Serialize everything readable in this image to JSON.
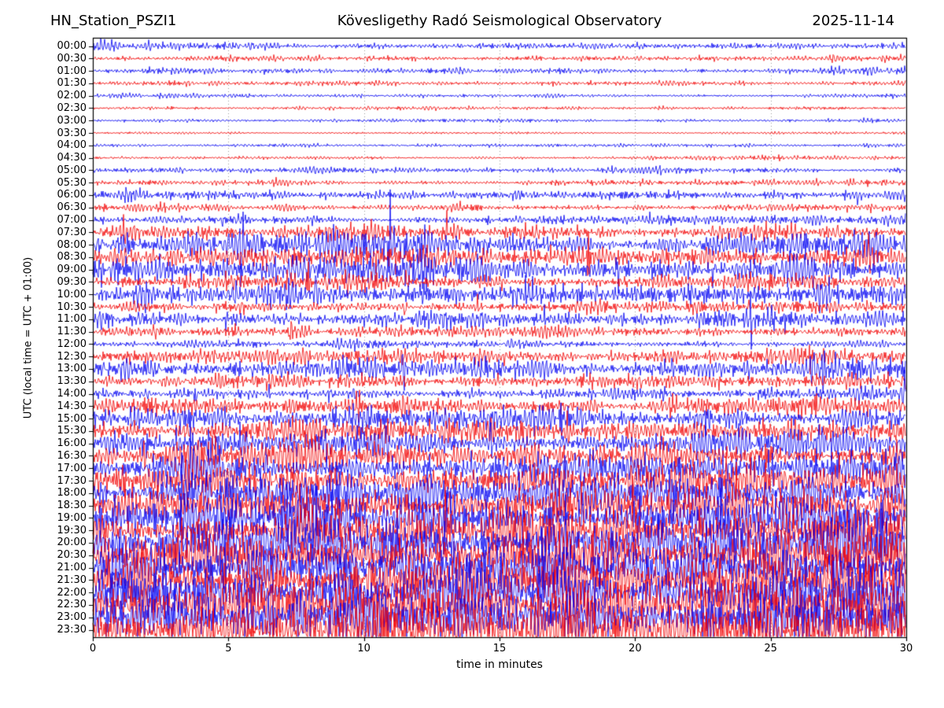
{
  "header": {
    "station": "HN_Station_PSZI1",
    "observatory": "Kövesligethy Radó Seismological Observatory",
    "date": "2025-11-14"
  },
  "chart_data": {
    "type": "line",
    "subtype": "helicorder_day_plot",
    "title": "HN_Station_PSZI1",
    "subtitle": "Kövesligethy Radó Seismological Observatory",
    "date_label": "2025-11-14",
    "xlabel": "time in minutes",
    "ylabel": "UTC (local time = UTC + 01:00)",
    "xlim": [
      0,
      30
    ],
    "xticks": [
      0,
      5,
      10,
      15,
      20,
      25,
      30
    ],
    "grid": {
      "vertical_dotted_minutes": [
        5,
        10,
        15,
        20,
        25
      ],
      "color": "#9a9a9a",
      "style": "dotted"
    },
    "legend": "none",
    "trace_colors": {
      "blue": "#0000f2",
      "red": "#f20000"
    },
    "minutes_per_row": 30,
    "rows": [
      {
        "label": "00:00",
        "color": "blue",
        "amp": [
          6,
          5,
          4,
          5,
          4,
          4,
          6
        ]
      },
      {
        "label": "00:30",
        "color": "red",
        "amp": [
          5,
          4,
          4,
          3,
          3,
          4,
          4
        ]
      },
      {
        "label": "01:00",
        "color": "blue",
        "amp": [
          3,
          4,
          4,
          3,
          3,
          3,
          5
        ]
      },
      {
        "label": "01:30",
        "color": "red",
        "amp": [
          4,
          3,
          3,
          3,
          3,
          3,
          4
        ]
      },
      {
        "label": "02:00",
        "color": "blue",
        "amp": [
          3,
          3,
          2,
          2,
          2,
          2,
          3
        ]
      },
      {
        "label": "02:30",
        "color": "red",
        "amp": [
          3,
          2,
          2,
          2,
          2,
          2,
          2
        ]
      },
      {
        "label": "03:00",
        "color": "blue",
        "amp": [
          2,
          2,
          2,
          2,
          2,
          2,
          2
        ]
      },
      {
        "label": "03:30",
        "color": "red",
        "amp": [
          1.5,
          1.5,
          1.5,
          1.5,
          1.5,
          1.5,
          1.5
        ]
      },
      {
        "label": "04:00",
        "color": "blue",
        "amp": [
          2,
          2,
          2,
          3,
          2,
          2,
          2
        ]
      },
      {
        "label": "04:30",
        "color": "red",
        "amp": [
          3,
          2,
          2,
          2,
          2,
          3,
          3
        ]
      },
      {
        "label": "05:00",
        "color": "blue",
        "amp": [
          5,
          4,
          3,
          3,
          4,
          4,
          4
        ]
      },
      {
        "label": "05:30",
        "color": "red",
        "amp": [
          4,
          4,
          3,
          3,
          4,
          4,
          4
        ]
      },
      {
        "label": "06:00",
        "color": "blue",
        "amp": [
          6,
          7,
          6,
          5,
          6,
          6,
          7
        ]
      },
      {
        "label": "06:30",
        "color": "red",
        "amp": [
          5,
          5,
          4,
          4,
          5,
          5,
          6
        ]
      },
      {
        "label": "07:00",
        "color": "blue",
        "amp": [
          6,
          6,
          5,
          6,
          5,
          6,
          8
        ]
      },
      {
        "label": "07:30",
        "color": "red",
        "amp": [
          8,
          10,
          10,
          8,
          8,
          9,
          10
        ]
      },
      {
        "label": "08:00",
        "color": "blue",
        "amp": [
          14,
          20,
          22,
          16,
          12,
          16,
          18
        ]
      },
      {
        "label": "08:30",
        "color": "red",
        "amp": [
          10,
          16,
          18,
          12,
          10,
          12,
          12
        ]
      },
      {
        "label": "09:00",
        "color": "blue",
        "amp": [
          16,
          20,
          22,
          14,
          12,
          16,
          14
        ]
      },
      {
        "label": "09:30",
        "color": "red",
        "amp": [
          8,
          10,
          12,
          8,
          8,
          10,
          10
        ]
      },
      {
        "label": "10:00",
        "color": "blue",
        "amp": [
          12,
          14,
          16,
          12,
          10,
          14,
          14
        ]
      },
      {
        "label": "10:30",
        "color": "red",
        "amp": [
          6,
          8,
          8,
          6,
          7,
          8,
          8
        ]
      },
      {
        "label": "11:00",
        "color": "blue",
        "amp": [
          9,
          10,
          12,
          10,
          8,
          10,
          10
        ]
      },
      {
        "label": "11:30",
        "color": "red",
        "amp": [
          6,
          7,
          8,
          6,
          6,
          8,
          8
        ]
      },
      {
        "label": "12:00",
        "color": "blue",
        "amp": [
          4,
          5,
          6,
          5,
          4,
          5,
          6
        ]
      },
      {
        "label": "12:30",
        "color": "red",
        "amp": [
          8,
          10,
          10,
          8,
          9,
          10,
          12
        ]
      },
      {
        "label": "13:00",
        "color": "blue",
        "amp": [
          10,
          12,
          13,
          10,
          10,
          12,
          12
        ]
      },
      {
        "label": "13:30",
        "color": "red",
        "amp": [
          8,
          9,
          10,
          8,
          8,
          10,
          11
        ]
      },
      {
        "label": "14:00",
        "color": "blue",
        "amp": [
          6,
          7,
          8,
          6,
          7,
          8,
          9
        ]
      },
      {
        "label": "14:30",
        "color": "red",
        "amp": [
          10,
          12,
          12,
          10,
          11,
          12,
          13
        ]
      },
      {
        "label": "15:00",
        "color": "blue",
        "amp": [
          12,
          14,
          16,
          14,
          13,
          15,
          16
        ]
      },
      {
        "label": "15:30",
        "color": "red",
        "amp": [
          12,
          14,
          15,
          13,
          14,
          15,
          16
        ]
      },
      {
        "label": "16:00",
        "color": "blue",
        "amp": [
          14,
          16,
          18,
          15,
          15,
          17,
          18
        ]
      },
      {
        "label": "16:30",
        "color": "red",
        "amp": [
          14,
          16,
          18,
          16,
          16,
          18,
          19
        ]
      },
      {
        "label": "17:00",
        "color": "blue",
        "amp": [
          16,
          18,
          20,
          18,
          18,
          20,
          21
        ]
      },
      {
        "label": "17:30",
        "color": "red",
        "amp": [
          18,
          20,
          22,
          20,
          20,
          22,
          23
        ]
      },
      {
        "label": "18:00",
        "color": "blue",
        "amp": [
          20,
          22,
          24,
          22,
          22,
          24,
          25
        ]
      },
      {
        "label": "18:30",
        "color": "red",
        "amp": [
          20,
          23,
          25,
          23,
          23,
          25,
          26
        ]
      },
      {
        "label": "19:00",
        "color": "blue",
        "amp": [
          22,
          25,
          27,
          25,
          25,
          27,
          28
        ]
      },
      {
        "label": "19:30",
        "color": "red",
        "amp": [
          22,
          26,
          28,
          26,
          26,
          28,
          29
        ]
      },
      {
        "label": "20:00",
        "color": "blue",
        "amp": [
          24,
          27,
          29,
          27,
          27,
          29,
          30
        ]
      },
      {
        "label": "20:30",
        "color": "red",
        "amp": [
          24,
          28,
          30,
          28,
          28,
          30,
          31
        ]
      },
      {
        "label": "21:00",
        "color": "blue",
        "amp": [
          26,
          29,
          31,
          29,
          29,
          31,
          32
        ]
      },
      {
        "label": "21:30",
        "color": "red",
        "amp": [
          26,
          30,
          32,
          30,
          30,
          32,
          33
        ]
      },
      {
        "label": "22:00",
        "color": "blue",
        "amp": [
          28,
          31,
          33,
          31,
          31,
          33,
          34
        ]
      },
      {
        "label": "22:30",
        "color": "red",
        "amp": [
          28,
          32,
          34,
          32,
          32,
          34,
          35
        ]
      },
      {
        "label": "23:00",
        "color": "blue",
        "amp": [
          30,
          33,
          35,
          33,
          33,
          35,
          36
        ]
      },
      {
        "label": "23:30",
        "color": "red",
        "amp": [
          30,
          34,
          36,
          34,
          34,
          36,
          37
        ]
      }
    ]
  }
}
